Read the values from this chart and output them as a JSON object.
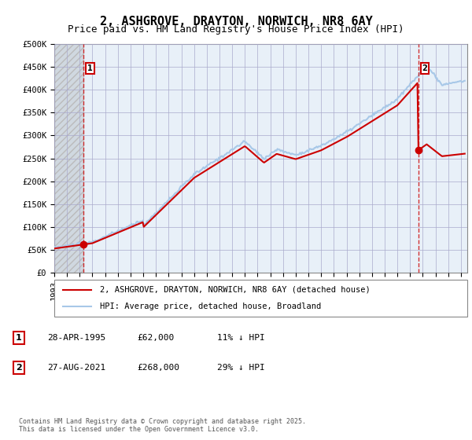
{
  "title": "2, ASHGROVE, DRAYTON, NORWICH, NR8 6AY",
  "subtitle": "Price paid vs. HM Land Registry's House Price Index (HPI)",
  "xlabel": "",
  "ylabel": "",
  "ylim": [
    0,
    500000
  ],
  "yticks": [
    0,
    50000,
    100000,
    150000,
    200000,
    250000,
    300000,
    350000,
    400000,
    450000,
    500000
  ],
  "ytick_labels": [
    "£0",
    "£50K",
    "£100K",
    "£150K",
    "£200K",
    "£250K",
    "£300K",
    "£350K",
    "£400K",
    "£450K",
    "£500K"
  ],
  "xlim_start": 1993.0,
  "xlim_end": 2025.5,
  "hpi_color": "#a8c8e8",
  "price_color": "#cc0000",
  "annotation_color": "#cc0000",
  "background_color": "#e8f0f8",
  "hatch_color": "#cccccc",
  "grid_color": "#aaaacc",
  "sale1_x": 1995.32,
  "sale1_y": 62000,
  "sale1_label": "1",
  "sale2_x": 2021.65,
  "sale2_y": 268000,
  "sale2_label": "2",
  "legend_line1": "2, ASHGROVE, DRAYTON, NORWICH, NR8 6AY (detached house)",
  "legend_line2": "HPI: Average price, detached house, Broadland",
  "table_row1": [
    "1",
    "28-APR-1995",
    "£62,000",
    "11% ↓ HPI"
  ],
  "table_row2": [
    "2",
    "27-AUG-2021",
    "£268,000",
    "29% ↓ HPI"
  ],
  "footer": "Contains HM Land Registry data © Crown copyright and database right 2025.\nThis data is licensed under the Open Government Licence v3.0.",
  "title_fontsize": 11,
  "subtitle_fontsize": 9,
  "tick_fontsize": 7.5,
  "xticks": [
    1993,
    1994,
    1995,
    1996,
    1997,
    1998,
    1999,
    2000,
    2001,
    2002,
    2003,
    2004,
    2005,
    2006,
    2007,
    2008,
    2009,
    2010,
    2011,
    2012,
    2013,
    2014,
    2015,
    2016,
    2017,
    2018,
    2019,
    2020,
    2021,
    2022,
    2023,
    2024,
    2025
  ]
}
